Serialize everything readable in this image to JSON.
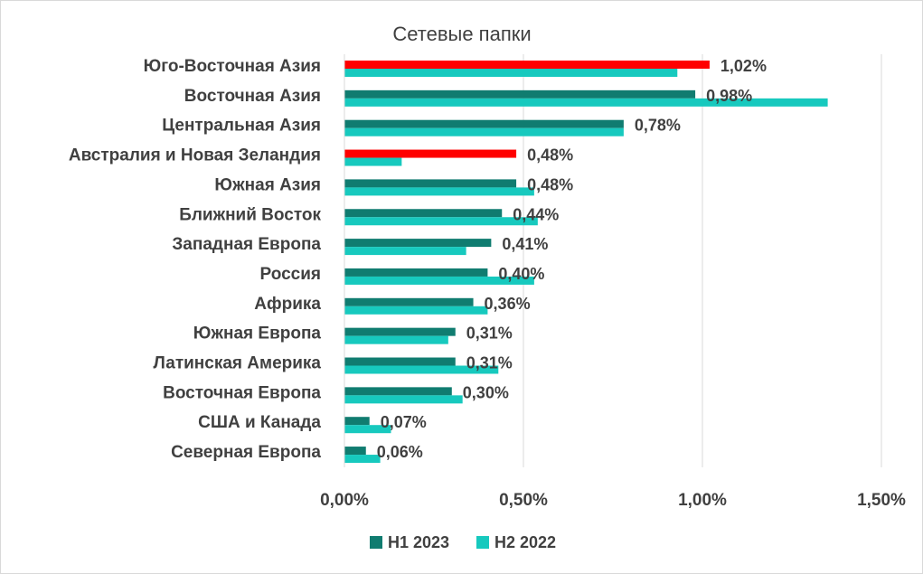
{
  "chart_data": {
    "type": "bar",
    "orientation": "horizontal",
    "title": "Сетевые папки",
    "categories": [
      "Юго-Восточная Азия",
      "Восточная Азия",
      "Центральная Азия",
      "Австралия и Новая Зеландия",
      "Южная Азия",
      "Ближний Восток",
      "Западная Европа",
      "Россия",
      "Африка",
      "Южная Европа",
      "Латинская Америка",
      "Восточная Европа",
      "США и Канада",
      "Северная Европа"
    ],
    "series": [
      {
        "name": "H1 2023",
        "color": "#107C70",
        "values": [
          1.02,
          0.98,
          0.78,
          0.48,
          0.48,
          0.44,
          0.41,
          0.4,
          0.36,
          0.31,
          0.31,
          0.3,
          0.07,
          0.06
        ],
        "highlight_color": "#FF0000",
        "highlight_indices": [
          0,
          3
        ]
      },
      {
        "name": "H2 2022",
        "color": "#17C9BE",
        "values": [
          0.93,
          1.35,
          0.78,
          0.16,
          0.53,
          0.54,
          0.34,
          0.53,
          0.4,
          0.29,
          0.43,
          0.33,
          0.13,
          0.1
        ]
      }
    ],
    "data_labels": [
      "1,02%",
      "0,98%",
      "0,78%",
      "0,48%",
      "0,48%",
      "0,44%",
      "0,41%",
      "0,40%",
      "0,36%",
      "0,31%",
      "0,31%",
      "0,30%",
      "0,07%",
      "0,06%"
    ],
    "x_ticks": [
      0,
      0.5,
      1.0,
      1.5
    ],
    "x_tick_labels": [
      "0,00%",
      "0,50%",
      "1,00%",
      "1,50%"
    ],
    "xlim": [
      0,
      1.5
    ],
    "xlabel": "",
    "ylabel": "",
    "grid": "vertical",
    "legend": "bottom"
  }
}
